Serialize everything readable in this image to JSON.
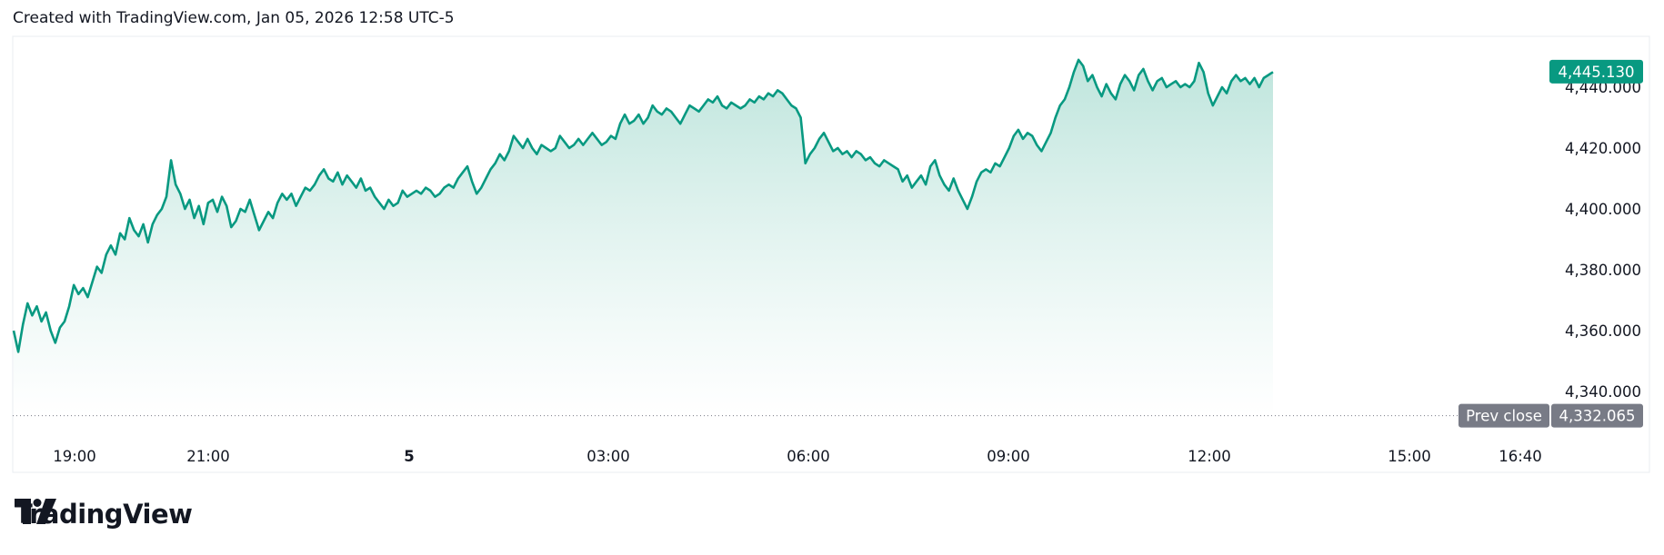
{
  "header": {
    "text": "Created with TradingView.com, Jan 05, 2026 12:58 UTC-5"
  },
  "brand": {
    "name": "TradingView",
    "logo_icon": "tradingview-logo-icon"
  },
  "colors": {
    "line": "#089981",
    "fill_top": "#b2e0d6",
    "fill_bottom": "#ffffff",
    "prev_close_tag": "#787b86",
    "text": "#131722"
  },
  "chart_data": {
    "type": "area",
    "ylim": [
      4330,
      4455
    ],
    "y_ticks": [
      {
        "value": 4340,
        "label": "4,340.000"
      },
      {
        "value": 4360,
        "label": "4,360.000"
      },
      {
        "value": 4380,
        "label": "4,380.000"
      },
      {
        "value": 4400,
        "label": "4,400.000"
      },
      {
        "value": 4420,
        "label": "4,420.000"
      },
      {
        "value": 4440,
        "label": "4,440.000"
      }
    ],
    "x_ticks": [
      "19:00",
      "21:00",
      "5",
      "03:00",
      "06:00",
      "09:00",
      "12:00",
      "15:00",
      "16:40"
    ],
    "last_price": {
      "value": 4445.13,
      "label": "4,445.130"
    },
    "prev_close": {
      "value": 4332.065,
      "label": "4,332.065",
      "tag": "Prev close"
    },
    "x_unit": "minutes since 18:00",
    "x_range": [
      0,
      1440
    ],
    "points": [
      [
        0,
        4360
      ],
      [
        3,
        4353
      ],
      [
        6,
        4362
      ],
      [
        9,
        4369
      ],
      [
        12,
        4365
      ],
      [
        15,
        4368
      ],
      [
        18,
        4363
      ],
      [
        21,
        4366
      ],
      [
        24,
        4360
      ],
      [
        27,
        4356
      ],
      [
        30,
        4361
      ],
      [
        33,
        4363
      ],
      [
        36,
        4368
      ],
      [
        39,
        4375
      ],
      [
        42,
        4372
      ],
      [
        45,
        4374
      ],
      [
        48,
        4371
      ],
      [
        51,
        4376
      ],
      [
        54,
        4381
      ],
      [
        57,
        4379
      ],
      [
        60,
        4385
      ],
      [
        63,
        4388
      ],
      [
        66,
        4385
      ],
      [
        69,
        4392
      ],
      [
        72,
        4390
      ],
      [
        75,
        4397
      ],
      [
        78,
        4393
      ],
      [
        81,
        4391
      ],
      [
        84,
        4395
      ],
      [
        87,
        4389
      ],
      [
        90,
        4395
      ],
      [
        93,
        4398
      ],
      [
        96,
        4400
      ],
      [
        99,
        4404
      ],
      [
        102,
        4416
      ],
      [
        105,
        4408
      ],
      [
        108,
        4405
      ],
      [
        111,
        4400
      ],
      [
        114,
        4403
      ],
      [
        117,
        4397
      ],
      [
        120,
        4401
      ],
      [
        123,
        4395
      ],
      [
        126,
        4402
      ],
      [
        129,
        4403
      ],
      [
        132,
        4399
      ],
      [
        135,
        4404
      ],
      [
        138,
        4401
      ],
      [
        141,
        4394
      ],
      [
        144,
        4396
      ],
      [
        147,
        4400
      ],
      [
        150,
        4399
      ],
      [
        153,
        4403
      ],
      [
        156,
        4398
      ],
      [
        159,
        4393
      ],
      [
        162,
        4396
      ],
      [
        165,
        4399
      ],
      [
        168,
        4397
      ],
      [
        171,
        4402
      ],
      [
        174,
        4405
      ],
      [
        177,
        4403
      ],
      [
        180,
        4405
      ],
      [
        183,
        4401
      ],
      [
        186,
        4404
      ],
      [
        189,
        4407
      ],
      [
        192,
        4406
      ],
      [
        195,
        4408
      ],
      [
        198,
        4411
      ],
      [
        201,
        4413
      ],
      [
        204,
        4410
      ],
      [
        207,
        4409
      ],
      [
        210,
        4412
      ],
      [
        213,
        4408
      ],
      [
        216,
        4411
      ],
      [
        219,
        4409
      ],
      [
        222,
        4407
      ],
      [
        225,
        4410
      ],
      [
        228,
        4406
      ],
      [
        231,
        4407
      ],
      [
        234,
        4404
      ],
      [
        237,
        4402
      ],
      [
        240,
        4400
      ],
      [
        243,
        4403
      ],
      [
        246,
        4401
      ],
      [
        249,
        4402
      ],
      [
        252,
        4406
      ],
      [
        255,
        4404
      ],
      [
        258,
        4405
      ],
      [
        261,
        4406
      ],
      [
        264,
        4405
      ],
      [
        267,
        4407
      ],
      [
        270,
        4406
      ],
      [
        273,
        4404
      ],
      [
        276,
        4405
      ],
      [
        279,
        4407
      ],
      [
        282,
        4408
      ],
      [
        285,
        4407
      ],
      [
        288,
        4410
      ],
      [
        291,
        4412
      ],
      [
        294,
        4414
      ],
      [
        297,
        4409
      ],
      [
        300,
        4405
      ],
      [
        303,
        4407
      ],
      [
        306,
        4410
      ],
      [
        309,
        4413
      ],
      [
        312,
        4415
      ],
      [
        315,
        4418
      ],
      [
        318,
        4416
      ],
      [
        321,
        4419
      ],
      [
        324,
        4424
      ],
      [
        327,
        4422
      ],
      [
        330,
        4420
      ],
      [
        333,
        4423
      ],
      [
        336,
        4420
      ],
      [
        339,
        4418
      ],
      [
        342,
        4421
      ],
      [
        345,
        4420
      ],
      [
        348,
        4419
      ],
      [
        351,
        4420
      ],
      [
        354,
        4424
      ],
      [
        357,
        4422
      ],
      [
        360,
        4420
      ],
      [
        363,
        4421
      ],
      [
        366,
        4423
      ],
      [
        369,
        4421
      ],
      [
        372,
        4423
      ],
      [
        375,
        4425
      ],
      [
        378,
        4423
      ],
      [
        381,
        4421
      ],
      [
        384,
        4422
      ],
      [
        387,
        4424
      ],
      [
        390,
        4423
      ],
      [
        393,
        4428
      ],
      [
        396,
        4431
      ],
      [
        399,
        4428
      ],
      [
        402,
        4429
      ],
      [
        405,
        4431
      ],
      [
        408,
        4428
      ],
      [
        411,
        4430
      ],
      [
        414,
        4434
      ],
      [
        417,
        4432
      ],
      [
        420,
        4431
      ],
      [
        423,
        4433
      ],
      [
        426,
        4432
      ],
      [
        429,
        4430
      ],
      [
        432,
        4428
      ],
      [
        435,
        4431
      ],
      [
        438,
        4434
      ],
      [
        441,
        4433
      ],
      [
        444,
        4432
      ],
      [
        447,
        4434
      ],
      [
        450,
        4436
      ],
      [
        453,
        4435
      ],
      [
        456,
        4437
      ],
      [
        459,
        4434
      ],
      [
        462,
        4433
      ],
      [
        465,
        4435
      ],
      [
        468,
        4434
      ],
      [
        471,
        4433
      ],
      [
        474,
        4434
      ],
      [
        477,
        4436
      ],
      [
        480,
        4435
      ],
      [
        483,
        4437
      ],
      [
        486,
        4436
      ],
      [
        489,
        4438
      ],
      [
        492,
        4437
      ],
      [
        495,
        4439
      ],
      [
        498,
        4438
      ],
      [
        501,
        4436
      ],
      [
        504,
        4434
      ],
      [
        507,
        4433
      ],
      [
        510,
        4430
      ],
      [
        513,
        4415
      ],
      [
        516,
        4418
      ],
      [
        519,
        4420
      ],
      [
        522,
        4423
      ],
      [
        525,
        4425
      ],
      [
        528,
        4422
      ],
      [
        531,
        4419
      ],
      [
        534,
        4420
      ],
      [
        537,
        4418
      ],
      [
        540,
        4419
      ],
      [
        543,
        4417
      ],
      [
        546,
        4419
      ],
      [
        549,
        4418
      ],
      [
        552,
        4416
      ],
      [
        555,
        4417
      ],
      [
        558,
        4415
      ],
      [
        561,
        4414
      ],
      [
        564,
        4416
      ],
      [
        567,
        4415
      ],
      [
        570,
        4414
      ],
      [
        573,
        4413
      ],
      [
        576,
        4409
      ],
      [
        579,
        4411
      ],
      [
        582,
        4407
      ],
      [
        585,
        4409
      ],
      [
        588,
        4411
      ],
      [
        591,
        4408
      ],
      [
        594,
        4414
      ],
      [
        597,
        4416
      ],
      [
        600,
        4411
      ],
      [
        603,
        4408
      ],
      [
        606,
        4406
      ],
      [
        609,
        4410
      ],
      [
        612,
        4406
      ],
      [
        615,
        4403
      ],
      [
        618,
        4400
      ],
      [
        621,
        4404
      ],
      [
        624,
        4409
      ],
      [
        627,
        4412
      ],
      [
        630,
        4413
      ],
      [
        633,
        4412
      ],
      [
        636,
        4415
      ],
      [
        639,
        4414
      ],
      [
        642,
        4417
      ],
      [
        645,
        4420
      ],
      [
        648,
        4424
      ],
      [
        651,
        4426
      ],
      [
        654,
        4423
      ],
      [
        657,
        4425
      ],
      [
        660,
        4424
      ],
      [
        663,
        4421
      ],
      [
        666,
        4419
      ],
      [
        669,
        4422
      ],
      [
        672,
        4425
      ],
      [
        675,
        4430
      ],
      [
        678,
        4434
      ],
      [
        681,
        4436
      ],
      [
        684,
        4440
      ],
      [
        687,
        4445
      ],
      [
        690,
        4449
      ],
      [
        693,
        4447
      ],
      [
        696,
        4442
      ],
      [
        699,
        4444
      ],
      [
        702,
        4440
      ],
      [
        705,
        4437
      ],
      [
        708,
        4441
      ],
      [
        711,
        4438
      ],
      [
        714,
        4436
      ],
      [
        717,
        4441
      ],
      [
        720,
        4444
      ],
      [
        723,
        4442
      ],
      [
        726,
        4439
      ],
      [
        729,
        4444
      ],
      [
        732,
        4446
      ],
      [
        735,
        4442
      ],
      [
        738,
        4439
      ],
      [
        741,
        4442
      ],
      [
        744,
        4443
      ],
      [
        747,
        4440
      ],
      [
        750,
        4441
      ],
      [
        753,
        4442
      ],
      [
        756,
        4440
      ],
      [
        759,
        4441
      ],
      [
        762,
        4440
      ],
      [
        765,
        4442
      ],
      [
        768,
        4448
      ],
      [
        771,
        4445
      ],
      [
        774,
        4438
      ],
      [
        777,
        4434
      ],
      [
        780,
        4437
      ],
      [
        783,
        4440
      ],
      [
        786,
        4438
      ],
      [
        789,
        4442
      ],
      [
        792,
        4444
      ],
      [
        795,
        4442
      ],
      [
        798,
        4443
      ],
      [
        801,
        4441
      ],
      [
        804,
        4443
      ],
      [
        807,
        4440
      ],
      [
        810,
        4443
      ],
      [
        813,
        4444
      ],
      [
        816,
        4445
      ]
    ]
  }
}
